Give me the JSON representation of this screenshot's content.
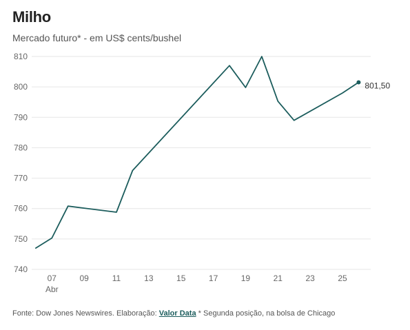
{
  "header": {
    "title": "Milho",
    "subtitle": "Mercado futuro* - em US$ cents/bushel"
  },
  "footer": {
    "source": "Fonte: Dow Jones Newswires. Elaboração:",
    "link_label": "Valor Data",
    "note": "* Segunda posição, na bolsa de Chicago"
  },
  "chart_data": {
    "type": "line",
    "title": "Milho",
    "subtitle": "Mercado futuro* - em US$ cents/bushel",
    "xlabel": "",
    "ylabel": "",
    "x": [
      6,
      7,
      8,
      11,
      12,
      18,
      19,
      20,
      21,
      22,
      25,
      26
    ],
    "series": [
      {
        "values": [
          747.0,
          750.3,
          760.8,
          758.8,
          772.5,
          807.0,
          799.8,
          810.0,
          795.3,
          789.0,
          798.0,
          801.5
        ]
      }
    ],
    "x_ticks": [
      7,
      9,
      11,
      13,
      15,
      17,
      19,
      21,
      23,
      25
    ],
    "x_tick_labels": [
      "07",
      "09",
      "11",
      "13",
      "15",
      "17",
      "19",
      "21",
      "23",
      "25"
    ],
    "x_month_label": "Abr",
    "y_ticks": [
      740,
      750,
      760,
      770,
      780,
      790,
      800,
      810
    ],
    "y_tick_labels": [
      "740",
      "750",
      "760",
      "770",
      "780",
      "790",
      "800",
      "810"
    ],
    "xlim": [
      5.75,
      26.75
    ],
    "ylim": [
      740,
      810
    ],
    "last_value_label": "801,50",
    "grid": true,
    "line_color": "#1b5c5c",
    "grid_color": "#e6e6e6",
    "tick_color": "#666666"
  }
}
